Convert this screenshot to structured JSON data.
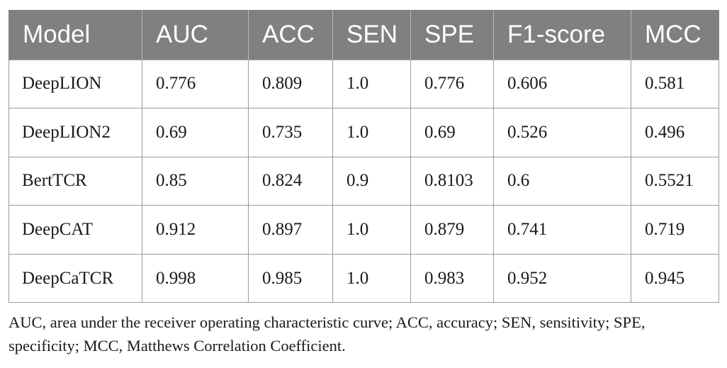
{
  "table": {
    "columns": [
      "Model",
      "AUC",
      "ACC",
      "SEN",
      "SPE",
      "F1-score",
      "MCC"
    ],
    "rows": [
      [
        "DeepLION",
        "0.776",
        "0.809",
        "1.0",
        "0.776",
        "0.606",
        "0.581"
      ],
      [
        "DeepLION2",
        "0.69",
        "0.735",
        "1.0",
        "0.69",
        "0.526",
        "0.496"
      ],
      [
        "BertTCR",
        "0.85",
        "0.824",
        "0.9",
        "0.8103",
        "0.6",
        "0.5521"
      ],
      [
        "DeepCAT",
        "0.912",
        "0.897",
        "1.0",
        "0.879",
        "0.741",
        "0.719"
      ],
      [
        "DeepCaTCR",
        "0.998",
        "0.985",
        "1.0",
        "0.983",
        "0.952",
        "0.945"
      ]
    ]
  },
  "footnote": "AUC, area under the receiver operating characteristic curve; ACC, accuracy; SEN, sensitivity; SPE, specificity; MCC, Matthews Correlation Coefficient.",
  "colors": {
    "header_bg": "#808080",
    "header_text": "#ffffff",
    "grid": "#9a9a9a"
  }
}
